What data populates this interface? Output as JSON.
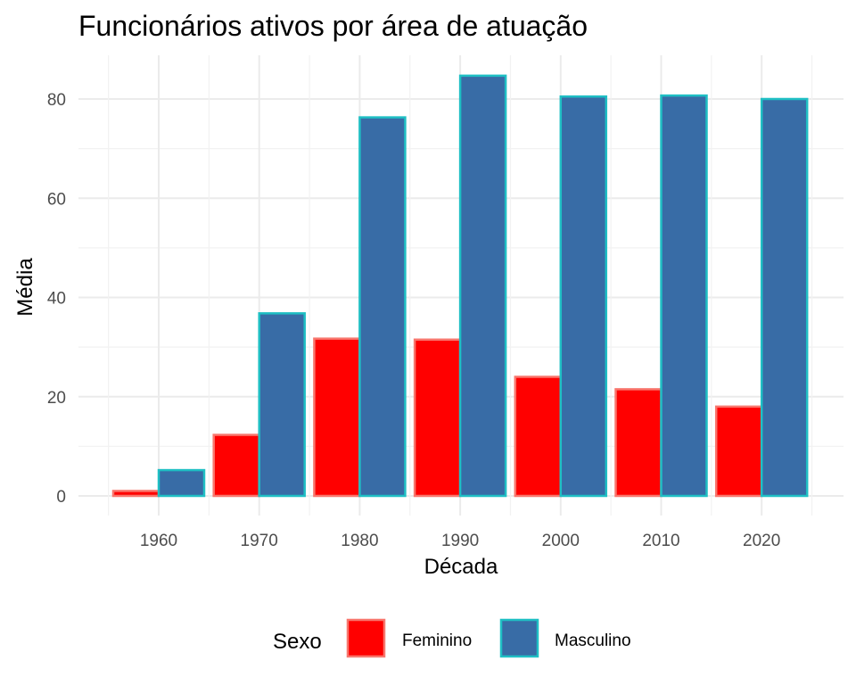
{
  "chart_data": {
    "type": "bar",
    "title": "Funcionários ativos por área de atuação",
    "xlabel": "Década",
    "ylabel": "Média",
    "categories": [
      "1960",
      "1970",
      "1980",
      "1990",
      "2000",
      "2010",
      "2020"
    ],
    "series": [
      {
        "name": "Feminino",
        "values": [
          1,
          12.3,
          31.7,
          31.5,
          24,
          21.5,
          18
        ],
        "fill": "#ff0000",
        "stroke": "#f8766d"
      },
      {
        "name": "Masculino",
        "values": [
          5.2,
          36.8,
          76.3,
          84.7,
          80.5,
          80.7,
          80
        ],
        "fill": "#386ca6",
        "stroke": "#1fbfc4"
      }
    ],
    "ylim": [
      0,
      88
    ],
    "yticks": [
      0,
      20,
      40,
      60,
      80
    ],
    "grid": true,
    "legend": {
      "title": "Sexo",
      "position": "bottom"
    }
  }
}
